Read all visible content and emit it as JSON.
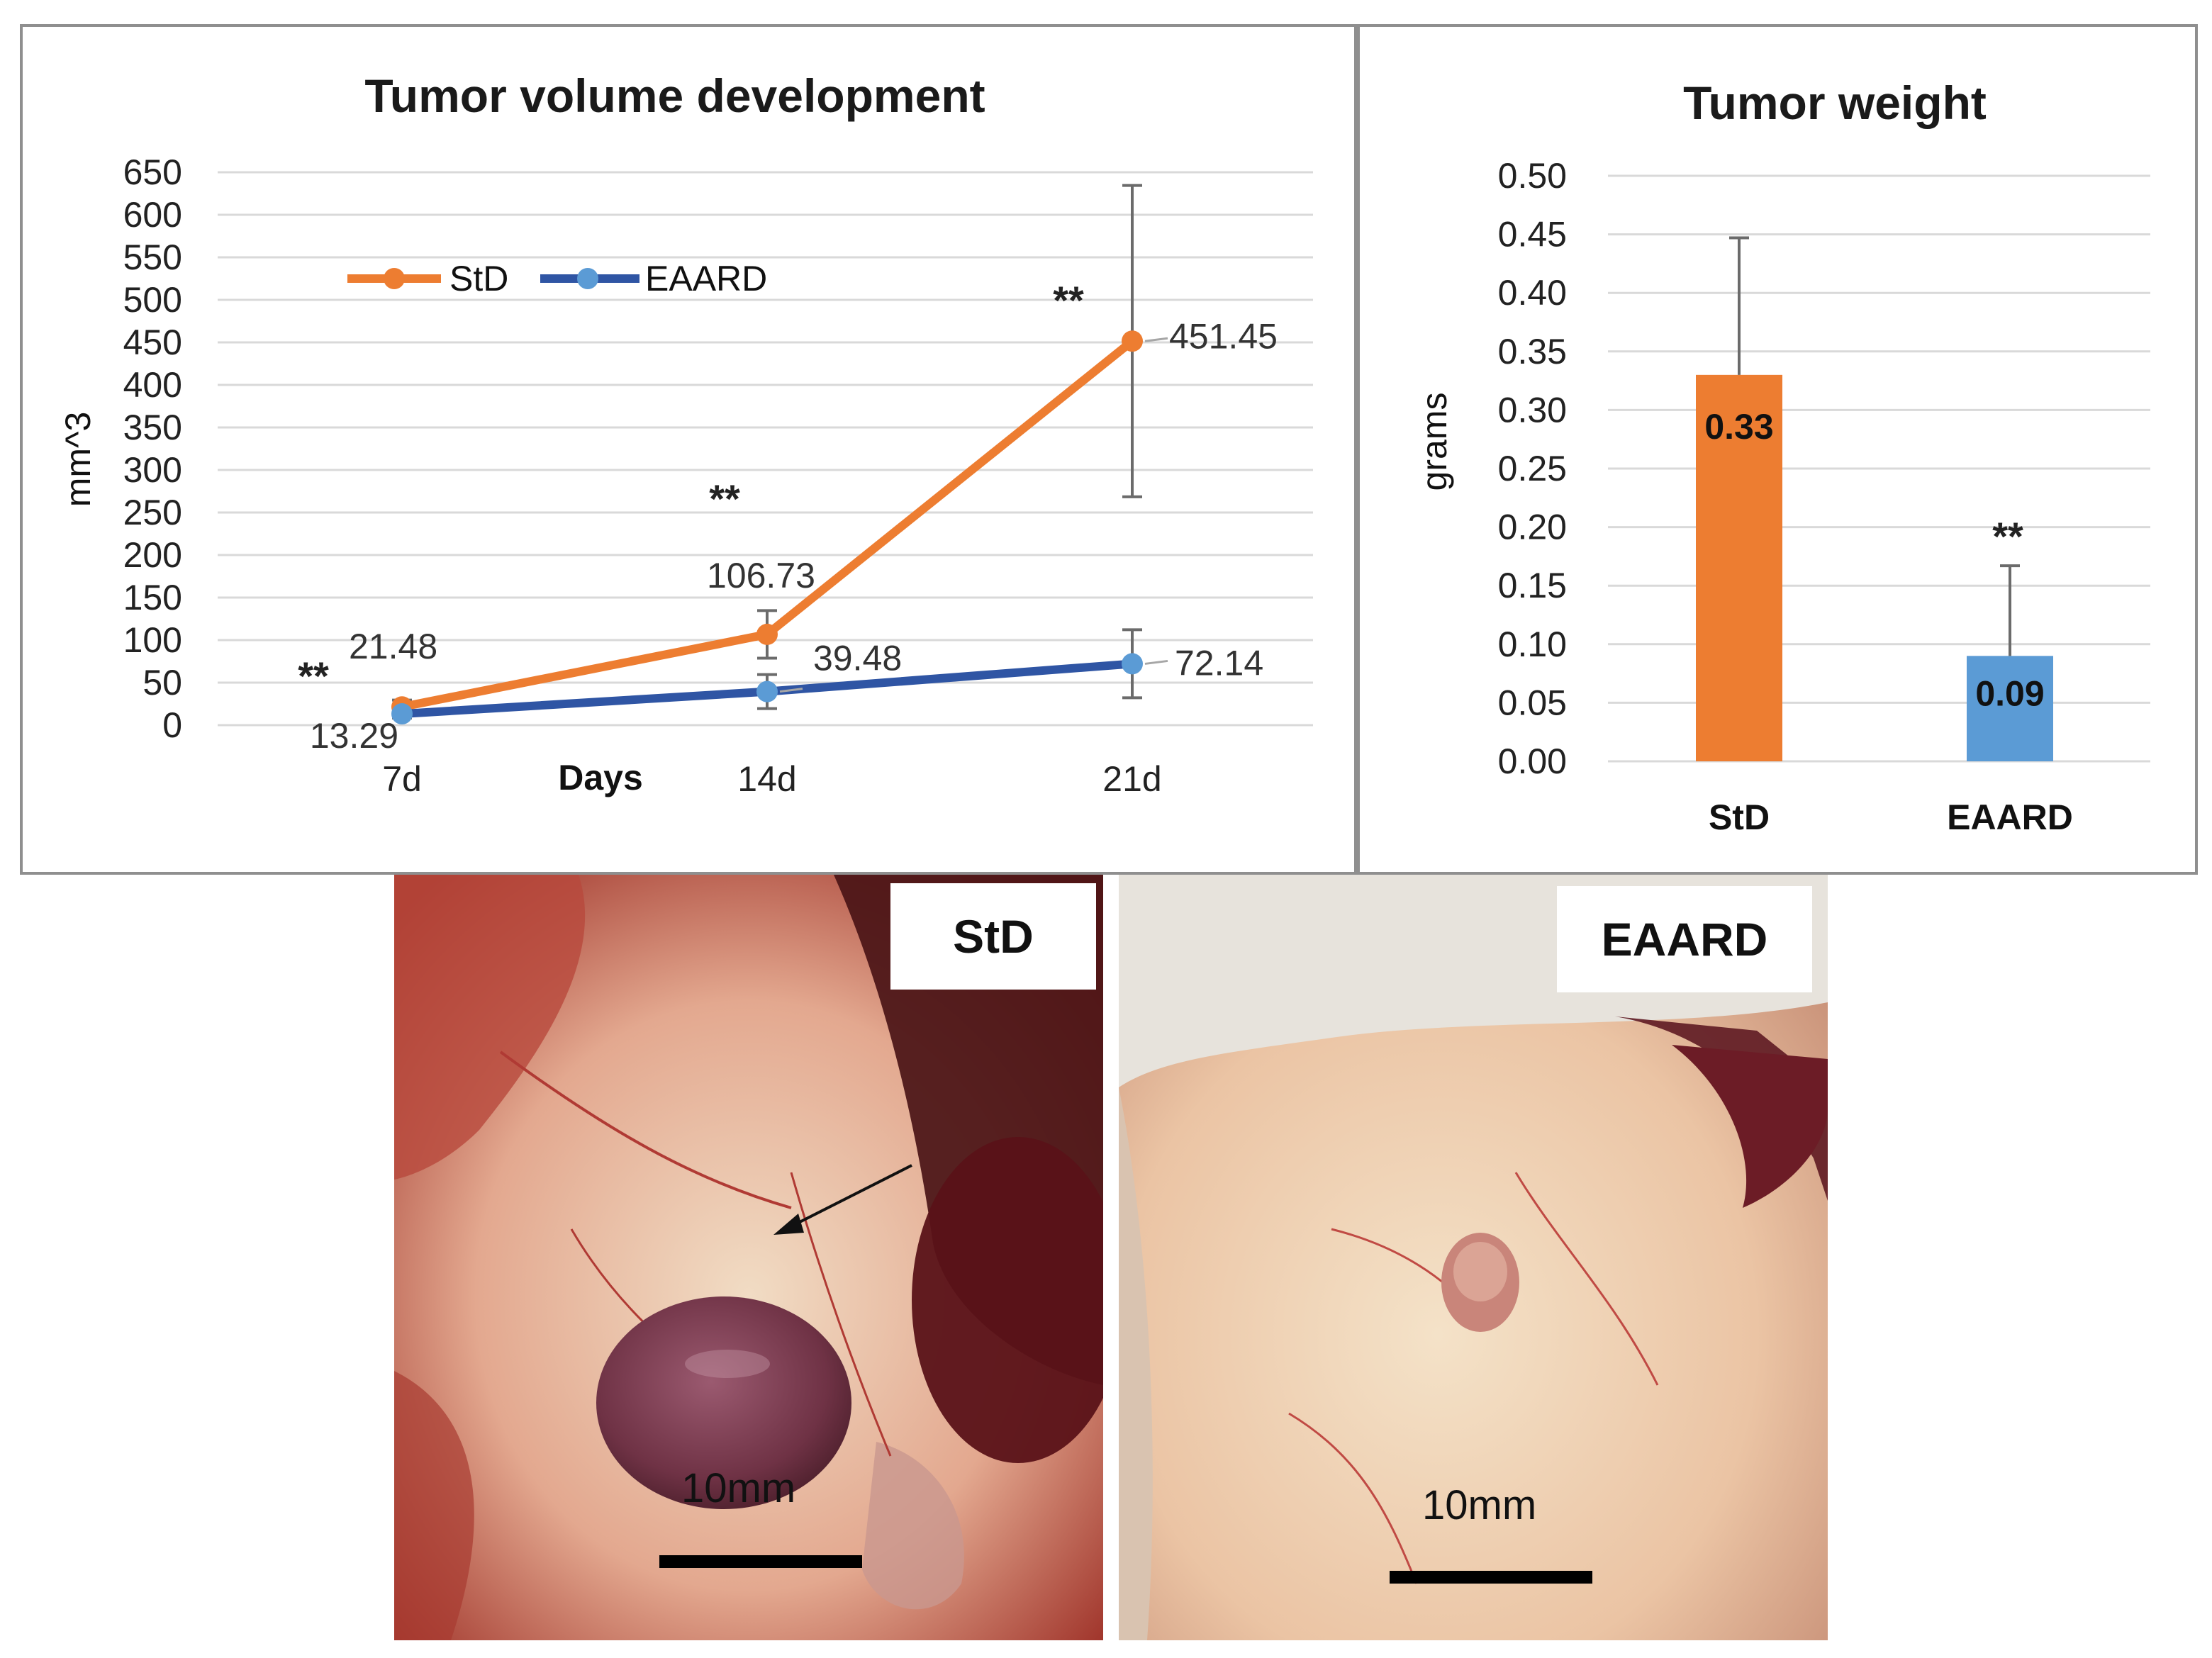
{
  "chart_data": [
    {
      "type": "line",
      "title": "Tumor volume development",
      "xlabel": "Days",
      "ylabel": "mm^3",
      "categories": [
        "7d",
        "14d",
        "21d"
      ],
      "ylim": [
        0,
        650
      ],
      "yticks": [
        0,
        50,
        100,
        150,
        200,
        250,
        300,
        350,
        400,
        450,
        500,
        550,
        600,
        650
      ],
      "legend_position": "top-left",
      "series": [
        {
          "name": "StD",
          "color": "#ED7D31",
          "values": [
            21.48,
            106.73,
            451.45
          ],
          "labels": [
            "21.48",
            "106.73",
            "451.45"
          ],
          "error": [
            8,
            28,
            183
          ]
        },
        {
          "name": "EAARD",
          "color": "#2F55A4",
          "marker_color": "#5B9BD5",
          "values": [
            13.29,
            39.48,
            72.14
          ],
          "labels": [
            "13.29",
            "39.48",
            "72.14"
          ],
          "error": [
            5,
            20,
            40
          ]
        }
      ],
      "significance": [
        "**",
        "**",
        "**"
      ]
    },
    {
      "type": "bar",
      "title": "Tumor weight",
      "xlabel": "",
      "ylabel": "grams",
      "categories": [
        "StD",
        "EAARD"
      ],
      "values": [
        0.33,
        0.09
      ],
      "labels": [
        "0.33",
        "0.09"
      ],
      "colors": [
        "#ED7D31",
        "#5B9BD5"
      ],
      "error": [
        0.117,
        0.077
      ],
      "ylim": [
        0,
        0.5
      ],
      "yticks": [
        "0.00",
        "0.05",
        "0.10",
        "0.15",
        "0.20",
        "0.25",
        "0.30",
        "0.35",
        "0.40",
        "0.45",
        "0.50"
      ],
      "significance": [
        "",
        "**"
      ]
    }
  ],
  "photos": [
    {
      "label": "StD",
      "scale_label": "10mm"
    },
    {
      "label": "EAARD",
      "scale_label": "10mm"
    }
  ]
}
